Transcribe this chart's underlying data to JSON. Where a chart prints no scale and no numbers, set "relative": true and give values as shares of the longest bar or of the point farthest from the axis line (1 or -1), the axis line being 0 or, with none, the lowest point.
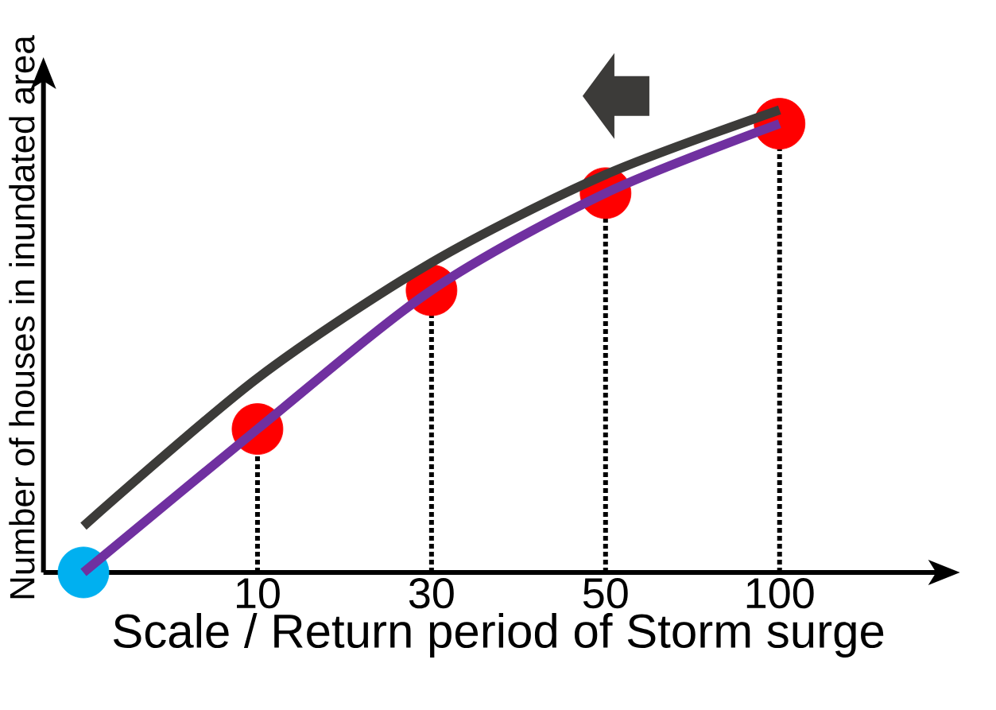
{
  "chart_data": {
    "type": "line",
    "xlabel": "Scale / Return period of Storm surge",
    "ylabel": "Number of houses in inundated area",
    "categories": [
      null,
      "10",
      "30",
      "50",
      "100"
    ],
    "relative": true,
    "series": [
      {
        "type": "lollipop",
        "color": "#ff0000",
        "line_style": "dotted",
        "values": [
          null,
          0.31,
          0.61,
          0.82,
          0.97
        ]
      },
      {
        "color": "#3c3b39",
        "values": [
          0.1,
          0.42,
          0.67,
          0.86,
          1
        ]
      },
      {
        "type": "scatter",
        "color": "#00b0f0",
        "values": [
          0,
          null,
          null,
          null,
          null
        ]
      },
      {
        "color": "#7030a0",
        "values": [
          0,
          0.31,
          0.61,
          0.82,
          0.97
        ]
      }
    ]
  }
}
